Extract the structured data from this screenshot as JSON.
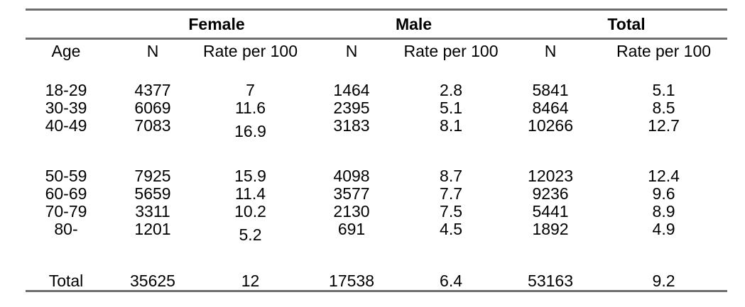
{
  "table": {
    "group_headers": {
      "female": "Female",
      "male": "Male",
      "total": "Total"
    },
    "column_headers": [
      "Age",
      "N",
      "Rate per 100",
      "N",
      "Rate per 100",
      "N",
      "Rate per 100"
    ],
    "rows": [
      {
        "age": "18-29",
        "cells": [
          "4377",
          "7",
          "1464",
          "2.8",
          "5841",
          "5.1"
        ]
      },
      {
        "age": "30-39",
        "cells": [
          "6069",
          "11.6",
          "2395",
          "5.1",
          "8464",
          "8.5"
        ]
      },
      {
        "age": "40-49",
        "cells": [
          "7083",
          "16.9",
          "3183",
          "8.1",
          "10266",
          "12.7"
        ]
      },
      {
        "age": "50-59",
        "cells": [
          "7925",
          "15.9",
          "4098",
          "8.7",
          "12023",
          "12.4"
        ]
      },
      {
        "age": "60-69",
        "cells": [
          "5659",
          "11.4",
          "3577",
          "7.7",
          "9236",
          "9.6"
        ]
      },
      {
        "age": "70-79",
        "cells": [
          "3311",
          "10.2",
          "2130",
          "7.5",
          "5441",
          "8.9"
        ]
      },
      {
        "age": "80-",
        "cells": [
          "1201",
          "5.2",
          "691",
          "4.5",
          "1892",
          "4.9"
        ]
      }
    ],
    "total_row": {
      "age": "Total",
      "cells": [
        "35625",
        "12",
        "17538",
        "6.4",
        "53163",
        "9.2"
      ]
    }
  },
  "colors": {
    "text": "#000000",
    "rule": "#6e6e6e",
    "background": "#ffffff"
  }
}
